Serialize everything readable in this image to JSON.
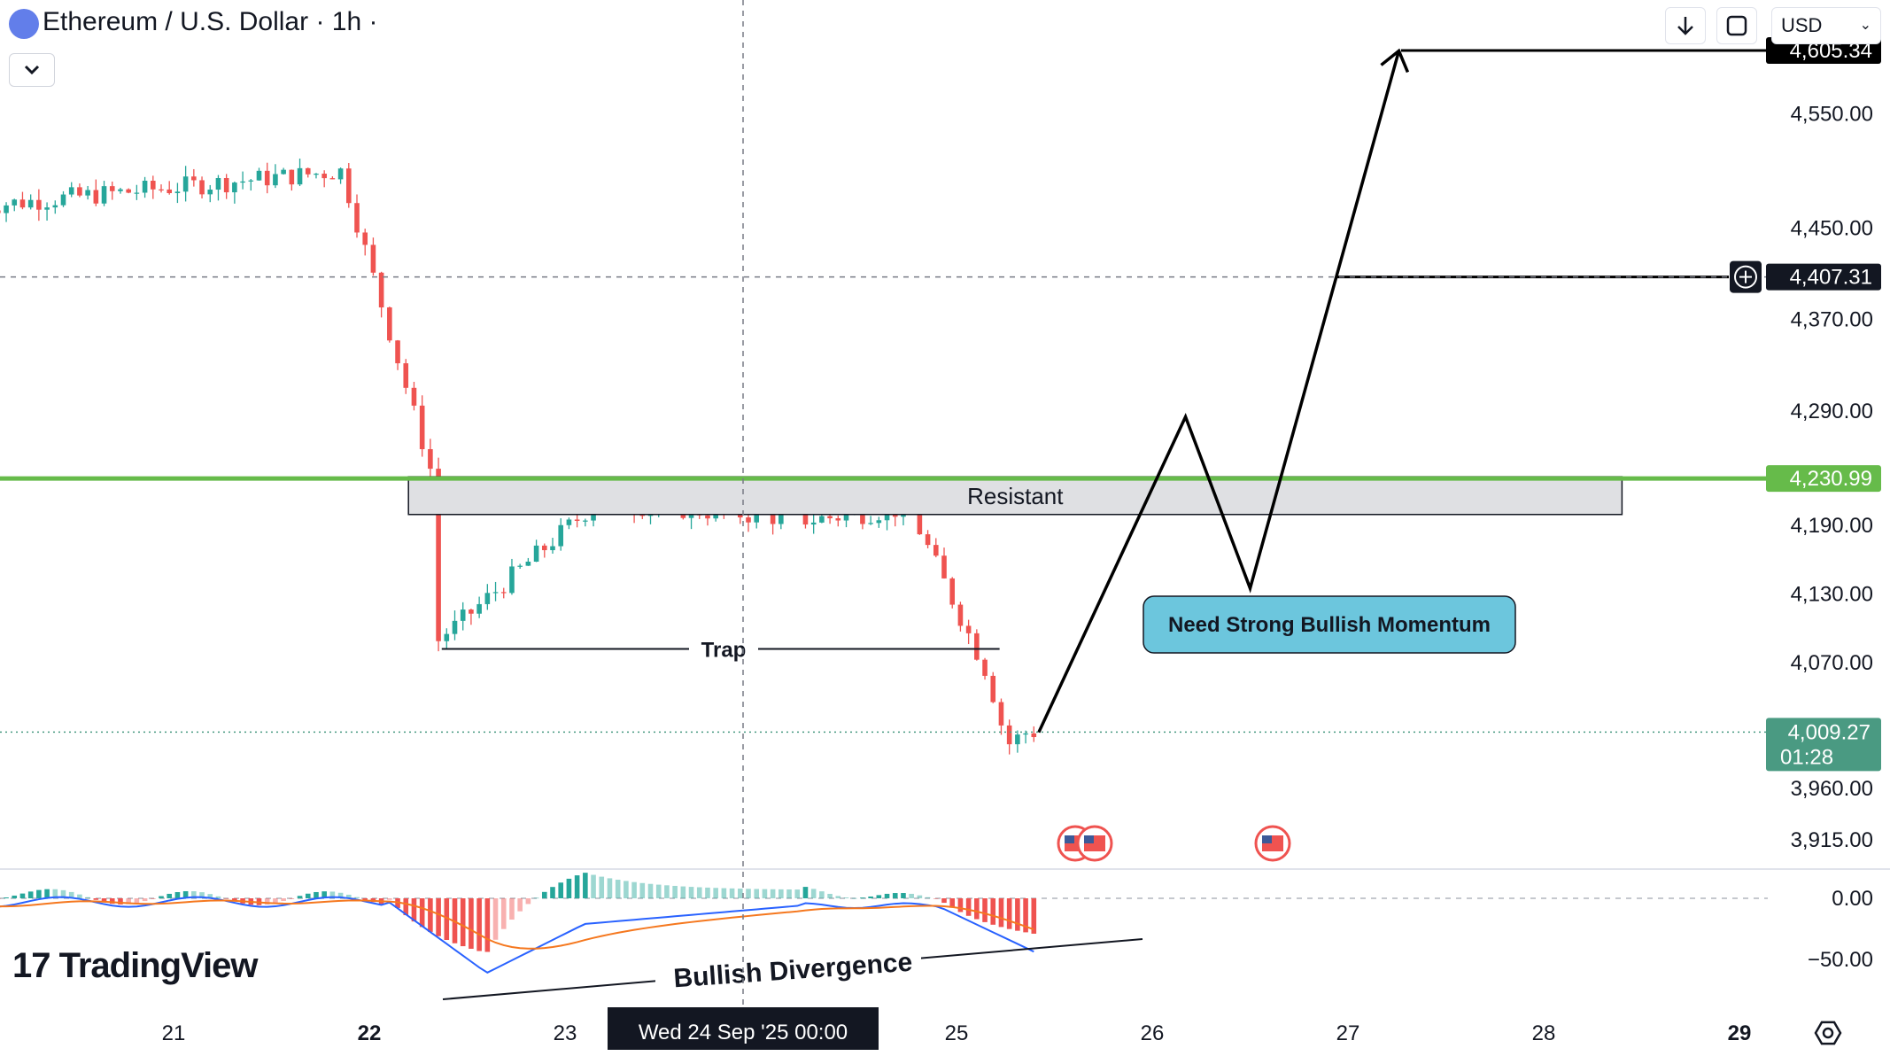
{
  "header": {
    "symbol_title": "Ethereum / U.S. Dollar · 1h ·",
    "currency": "USD",
    "icons": [
      "ethereum-icon",
      "chevron-down-icon",
      "download-arrow-icon",
      "fullscreen-icon",
      "currency-chevron-icon",
      "settings-hexagon-icon",
      "add-alert-plus-icon",
      "us-flag-icon"
    ]
  },
  "branding": {
    "logo_text": "TradingView"
  },
  "chart_data": {
    "type": "candlestick",
    "instrument": "ETHUSD",
    "interval": "1h",
    "price_axis": {
      "range": [
        3880,
        4640
      ],
      "ticks": [
        "4,550.00",
        "4,450.00",
        "4,370.00",
        "4,290.00",
        "4,190.00",
        "4,130.00",
        "4,070.00",
        "3,960.00",
        "3,915.00"
      ]
    },
    "price_labels": {
      "target": "4,605.34",
      "crosshair": "4,407.31",
      "resistance": "4,230.99",
      "last_price": "4,009.27",
      "countdown": "01:28"
    },
    "time_axis": {
      "ticks": [
        "21",
        "22",
        "23",
        "25",
        "26",
        "27",
        "28",
        "29"
      ],
      "crosshair_label": "Wed 24 Sep '25   00:00"
    },
    "levels": {
      "target": 4605.34,
      "crosshair": 4407.31,
      "resistance": 4230.99,
      "last": 4009.27,
      "trap": 4082
    },
    "key_points": [
      {
        "day": 20.1,
        "price": 4470
      },
      {
        "day": 21.9,
        "price": 4500
      },
      {
        "day": 22.37,
        "price": 4230
      },
      {
        "day": 22.37,
        "price": 4085
      },
      {
        "day": 23.2,
        "price": 4210
      },
      {
        "day": 24.3,
        "price": 4195
      },
      {
        "day": 24.8,
        "price": 4205
      },
      {
        "day": 25.2,
        "price": 4060
      },
      {
        "day": 25.3,
        "price": 3998
      },
      {
        "day": 25.4,
        "price": 4009.27
      }
    ],
    "projection_path": [
      {
        "day": 25.42,
        "price": 4009
      },
      {
        "day": 26.17,
        "price": 4285
      },
      {
        "day": 26.5,
        "price": 4135
      },
      {
        "day": 27.26,
        "price": 4605
      }
    ],
    "annotations": {
      "resistant_label": "Resistant",
      "trap_label": "Trap",
      "momentum_label": "Need Strong Bullish Momentum",
      "divergence_label": "Bullish Divergence"
    },
    "macd": {
      "ticks": [
        "0.00",
        "−50.00"
      ],
      "range": [
        -80,
        20
      ],
      "lines": [
        "blue macd",
        "orange signal"
      ]
    },
    "colors": {
      "up": "#26a69a",
      "down": "#ef5350",
      "resistance": "#66bb4a",
      "target_label": "#000000",
      "last_label": "#4a9a82",
      "momentum_box": "#6cc6dd",
      "macd_line": "#2962ff",
      "signal_line": "#f5781f"
    }
  }
}
